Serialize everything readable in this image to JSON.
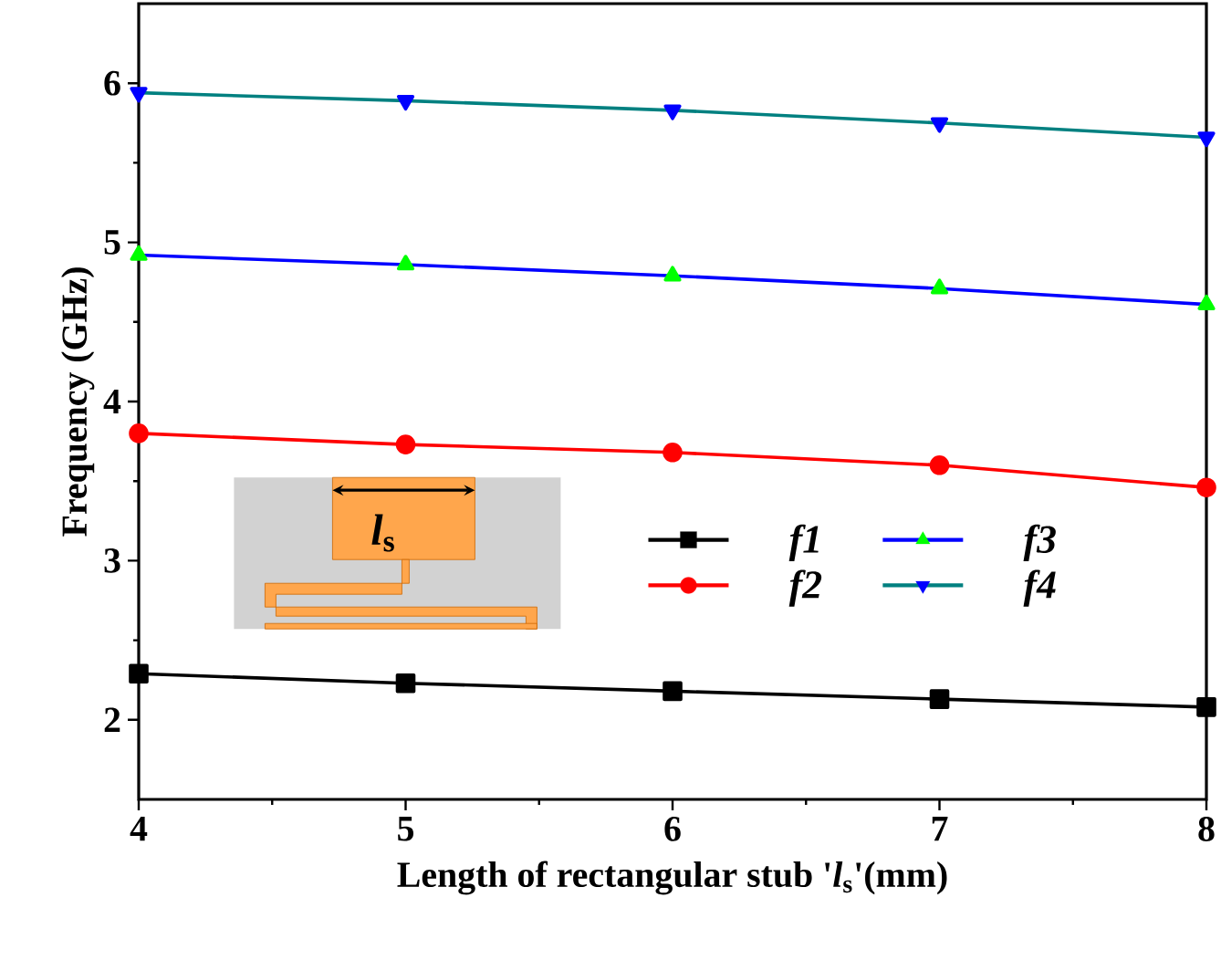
{
  "chart_data": {
    "type": "line",
    "xlabel": "Length of rectangular stub '*l*$_{s}$'(mm)",
    "ylabel": "Frequency (GHz)",
    "x": [
      4,
      5,
      6,
      7,
      8
    ],
    "series": [
      {
        "name": "f1",
        "color": "#000000",
        "marker": "square",
        "values": [
          2.29,
          2.23,
          2.18,
          2.13,
          2.08
        ]
      },
      {
        "name": "f2",
        "color": "#ff0000",
        "marker": "circle",
        "values": [
          3.8,
          3.73,
          3.68,
          3.6,
          3.46
        ]
      },
      {
        "name": "f3",
        "color": "#0000ff",
        "colors": [
          "#00ff00",
          "#00ff00",
          "#00ff00",
          "#00ff00",
          "#00ff00"
        ],
        "marker": "triangle",
        "values": [
          4.92,
          4.86,
          4.79,
          4.71,
          4.61
        ]
      },
      {
        "name": "f4",
        "color": "#008080",
        "colors": [
          "#0000ff",
          "#0000ff",
          "#0000ff",
          "#0000ff",
          "#0000ff"
        ],
        "marker": "triangle-down",
        "values": [
          5.94,
          5.89,
          5.83,
          5.75,
          5.66
        ]
      }
    ],
    "annotations": [
      "*l*$_{s}$"
    ],
    "xlim": [
      4,
      8
    ],
    "ylim": [
      1.5,
      6.5
    ],
    "xticks": [
      4,
      5,
      6,
      7,
      8
    ],
    "yticks": [
      2,
      3,
      4,
      5,
      6
    ],
    "legend": "center right",
    "grid": false,
    "line_style": "solid"
  }
}
